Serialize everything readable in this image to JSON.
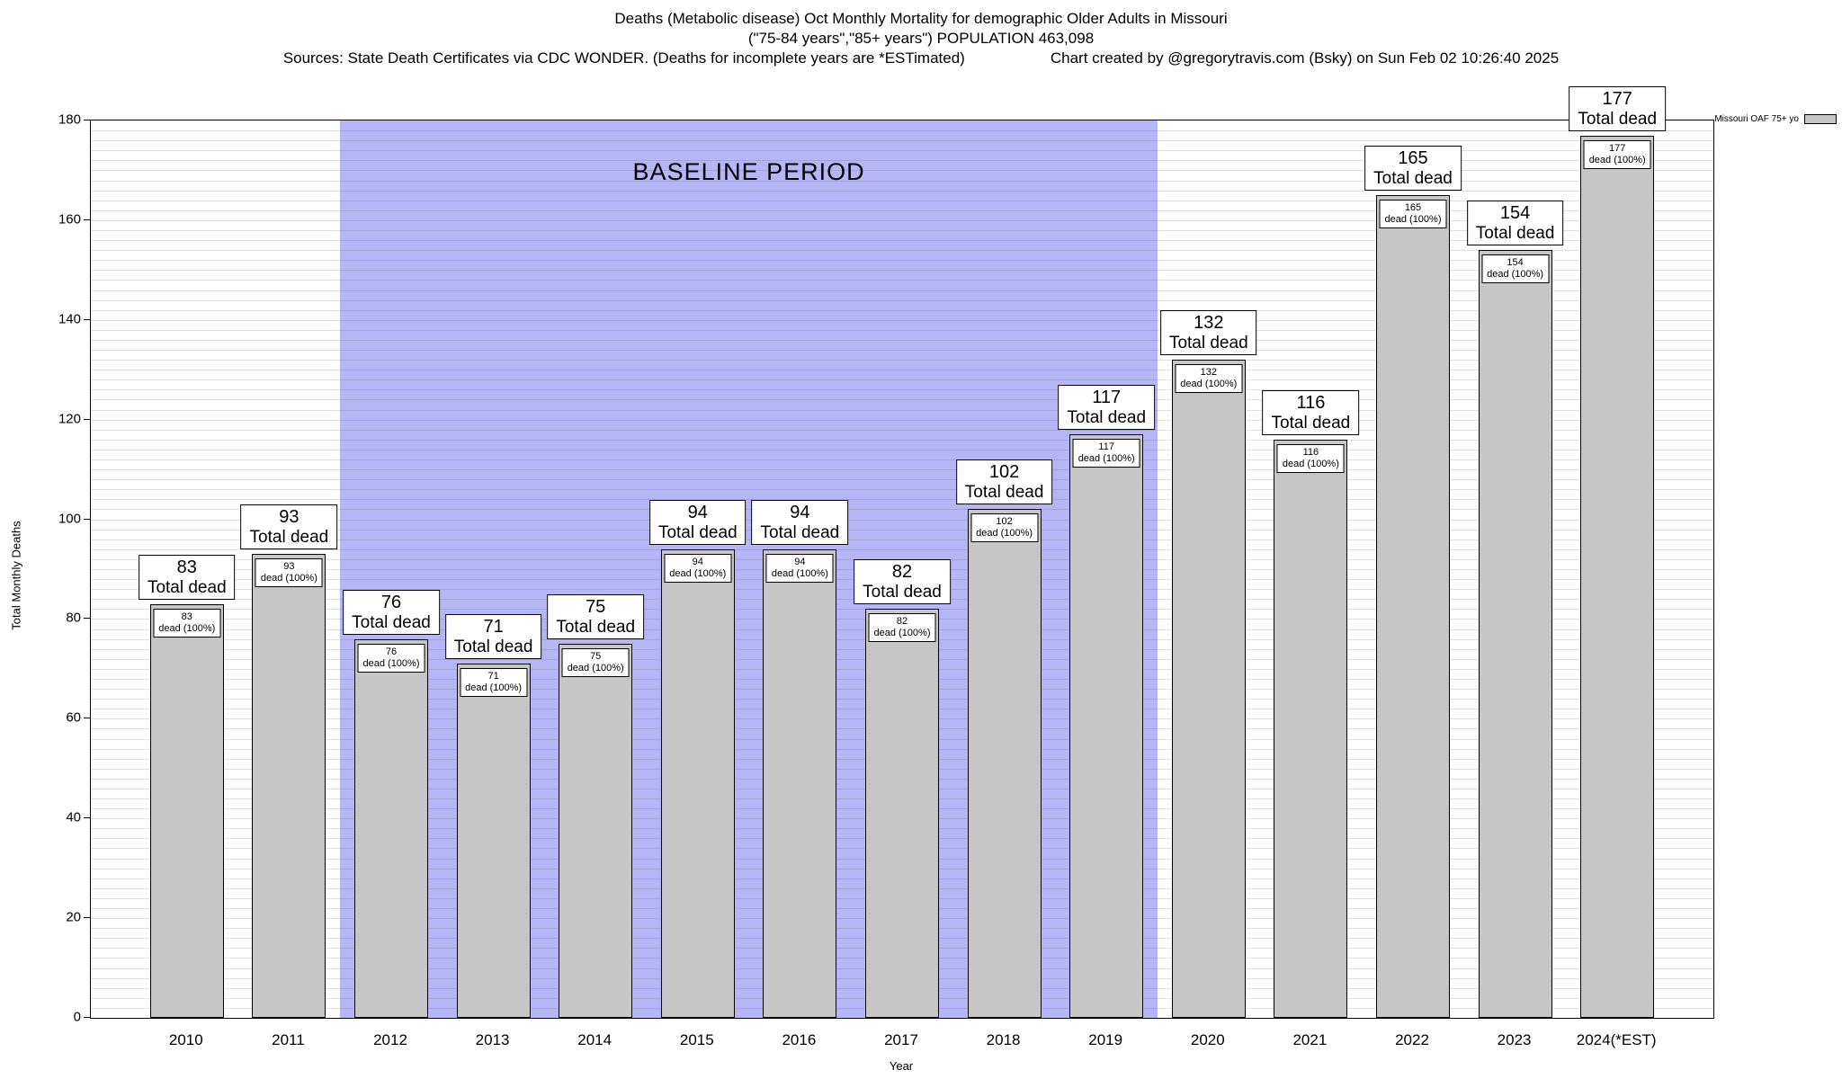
{
  "titles": {
    "line1": "Deaths (Metabolic disease) Oct Monthly Mortality for demographic Older Adults in Missouri",
    "line2": "(\"75-84 years\",\"85+ years\") POPULATION 463,098",
    "sources": "Sources: State Death Certificates via CDC WONDER. (Deaths for incomplete years are *ESTimated)",
    "credit": "Chart created by @gregorytravis.com (Bsky) on Sun Feb 02 10:26:40 2025"
  },
  "legend": {
    "label": "Missouri OAF 75+ yo"
  },
  "axes": {
    "y_label": "Total Monthly Deaths",
    "x_label": "Year"
  },
  "chart_data": {
    "type": "bar",
    "title": "Deaths (Metabolic disease) Oct Monthly Mortality for demographic Older Adults in Missouri",
    "subtitle": "(\"75-84 years\",\"85+ years\") POPULATION 463,098",
    "categories": [
      "2010",
      "2011",
      "2012",
      "2013",
      "2014",
      "2015",
      "2016",
      "2017",
      "2018",
      "2019",
      "2020",
      "2021",
      "2022",
      "2023",
      "2024(*EST)"
    ],
    "values": [
      83,
      93,
      76,
      71,
      75,
      94,
      94,
      82,
      102,
      117,
      132,
      116,
      165,
      154,
      177
    ],
    "bar_label_suffix": "Total dead",
    "inner_label_suffix": "dead (100%)",
    "xlabel": "Year",
    "ylabel": "Total Monthly Deaths",
    "ylim": [
      0,
      180
    ],
    "ytick_step": 20,
    "minor_grid_step": 2,
    "grid": true,
    "legend_entry": "Missouri OAF 75+ yo",
    "legend_position": "outside-top-right",
    "baseline_period": {
      "from": "2012",
      "to": "2019",
      "label": "BASELINE PERIOD"
    },
    "colors": {
      "bar": "#c6c6c6",
      "baseline_region": "#b6b6f7",
      "border": "#000000"
    }
  }
}
